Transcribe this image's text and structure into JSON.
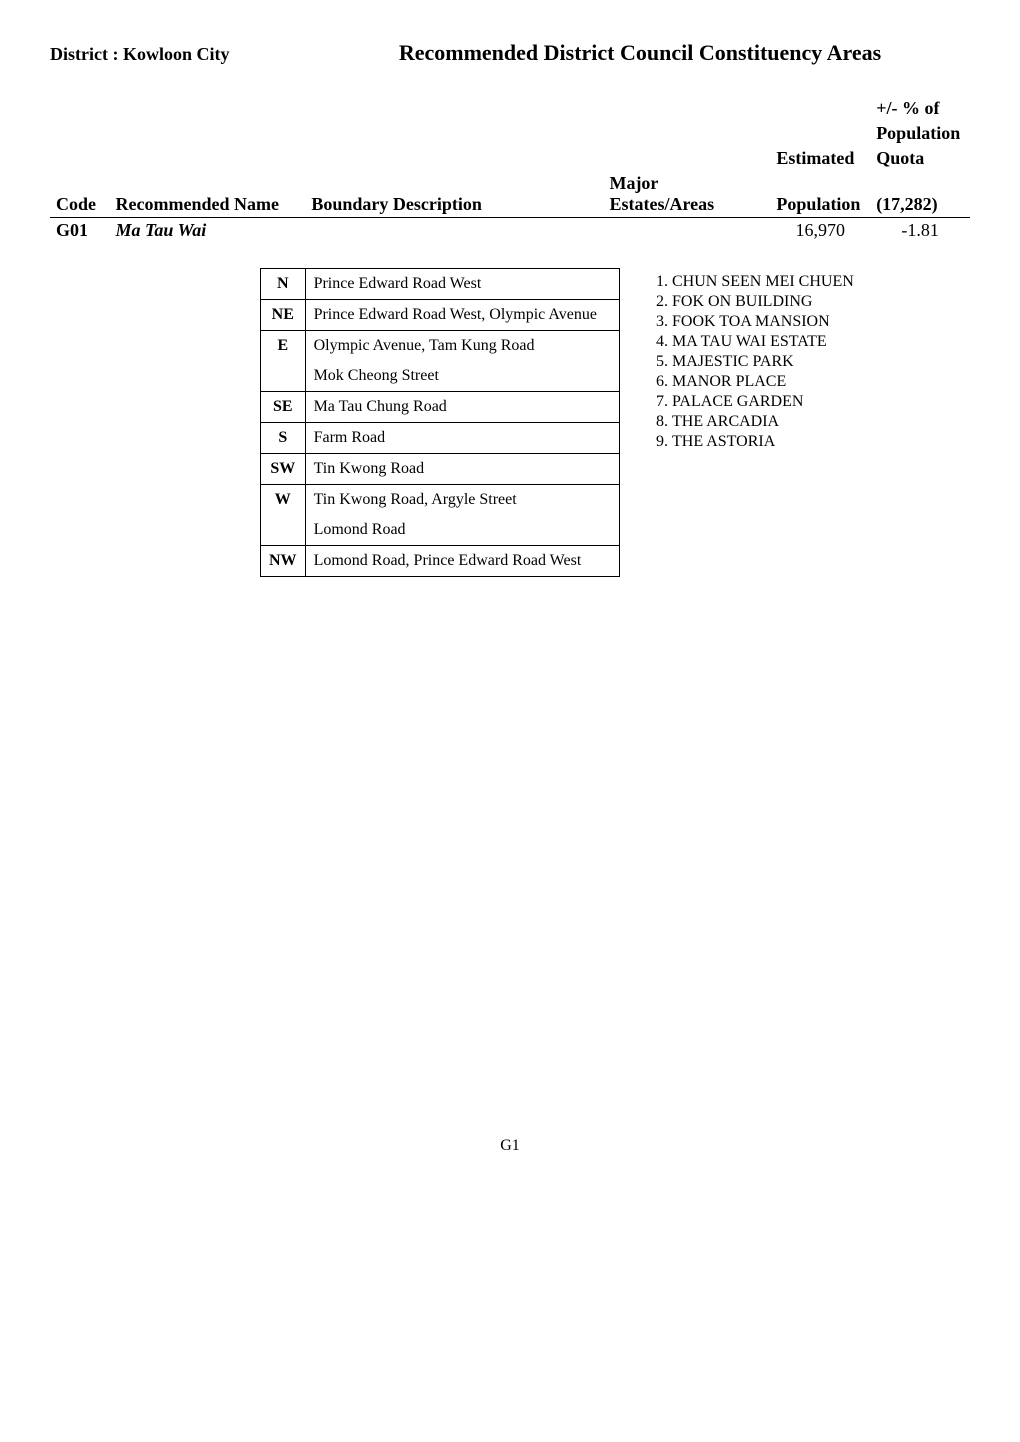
{
  "district_label": "District : Kowloon City",
  "page_title": "Recommended District Council Constituency Areas",
  "headers": {
    "code": "Code",
    "name": "Recommended Name",
    "boundary": "Boundary Description",
    "estates": "Major Estates/Areas",
    "est_pop_line1": "Estimated",
    "est_pop_line2": "Population",
    "pct_line1": "+/- % of",
    "pct_line2": "Population",
    "pct_line3": "Quota",
    "pct_line4": "(17,282)"
  },
  "row": {
    "code": "G01",
    "name": "Ma Tau Wai",
    "est_population": "16,970",
    "pct": "-1.81"
  },
  "boundary": [
    {
      "dir": "N",
      "desc": "Prince Edward Road West"
    },
    {
      "dir": "NE",
      "desc": "Prince Edward Road West, Olympic Avenue"
    },
    {
      "dir": "E",
      "desc": "Olympic Avenue, Tam Kung Road\nMok Cheong Street"
    },
    {
      "dir": "SE",
      "desc": "Ma Tau Chung Road"
    },
    {
      "dir": "S",
      "desc": "Farm Road"
    },
    {
      "dir": "SW",
      "desc": "Tin Kwong Road"
    },
    {
      "dir": "W",
      "desc": "Tin Kwong Road, Argyle Street\nLomond Road"
    },
    {
      "dir": "NW",
      "desc": "Lomond Road, Prince Edward Road West"
    }
  ],
  "estates": [
    "CHUN SEEN MEI CHUEN",
    "FOK ON BUILDING",
    "FOOK TOA MANSION",
    "MA TAU WAI ESTATE",
    "MAJESTIC PARK",
    "MANOR PLACE",
    "PALACE GARDEN",
    "THE ARCADIA",
    "THE ASTORIA"
  ],
  "page_number": "G1"
}
